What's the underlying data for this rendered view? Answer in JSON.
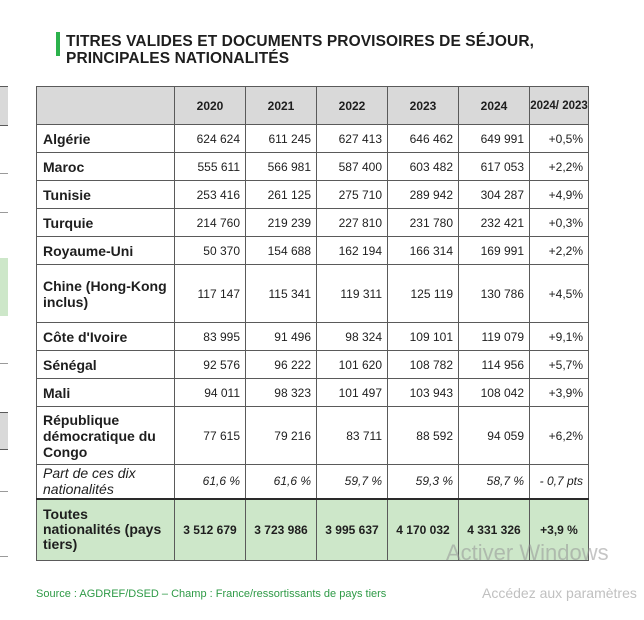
{
  "title": {
    "line1": "TITRES VALIDES ET DOCUMENTS PROVISOIRES DE SÉJOUR,",
    "line2": "PRINCIPALES NATIONALITÉS"
  },
  "table": {
    "headers": [
      "",
      "2020",
      "2021",
      "2022",
      "2023",
      "2024",
      "2024/ 2023"
    ],
    "rows": [
      {
        "name": "Algérie",
        "values": [
          "624 624",
          "611 245",
          "627 413",
          "646 462",
          "649 991",
          "+0,5%"
        ]
      },
      {
        "name": "Maroc",
        "values": [
          "555 611",
          "566 981",
          "587 400",
          "603 482",
          "617 053",
          "+2,2%"
        ]
      },
      {
        "name": "Tunisie",
        "values": [
          "253 416",
          "261 125",
          "275 710",
          "289 942",
          "304 287",
          "+4,9%"
        ]
      },
      {
        "name": "Turquie",
        "values": [
          "214 760",
          "219 239",
          "227 810",
          "231 780",
          "232 421",
          "+0,3%"
        ]
      },
      {
        "name": "Royaume-Uni",
        "values": [
          "50 370",
          "154 688",
          "162 194",
          "166 314",
          "169 991",
          "+2,2%"
        ]
      },
      {
        "name": "Chine (Hong-Kong inclus)",
        "values": [
          "117 147",
          "115 341",
          "119 311",
          "125 119",
          "130 786",
          "+4,5%"
        ]
      },
      {
        "name": "Côte d'Ivoire",
        "values": [
          "83 995",
          "91 496",
          "98 324",
          "109 101",
          "119 079",
          "+9,1%"
        ]
      },
      {
        "name": "Sénégal",
        "values": [
          "92 576",
          "96 222",
          "101 620",
          "108 782",
          "114 956",
          "+5,7%"
        ]
      },
      {
        "name": "Mali",
        "values": [
          "94 011",
          "98 323",
          "101 497",
          "103 943",
          "108 042",
          "+3,9%"
        ]
      },
      {
        "name": "République démocratique du Congo",
        "values": [
          "77 615",
          "79 216",
          "83 711",
          "88 592",
          "94 059",
          "+6,2%"
        ]
      }
    ],
    "share": {
      "name": "Part de ces dix nationalités",
      "values": [
        "61,6 %",
        "61,6 %",
        "59,7 %",
        "59,3 %",
        "58,7 %",
        "- 0,7 pts"
      ]
    },
    "total": {
      "name": "Toutes nationalités (pays tiers)",
      "values": [
        "3 512 679",
        "3 723 986",
        "3 995 637",
        "4 170 032",
        "4 331 326",
        "+3,9 %"
      ]
    }
  },
  "source": "Source : AGDREF/DSED – Champ : France/ressortissants de pays tiers",
  "watermark": {
    "line1": "Activer Windows",
    "line2": "Accédez aux paramètres"
  },
  "colors": {
    "accent_green": "#2bb24c",
    "header_gray": "#d9d9d9",
    "total_green": "#cde7c9"
  }
}
